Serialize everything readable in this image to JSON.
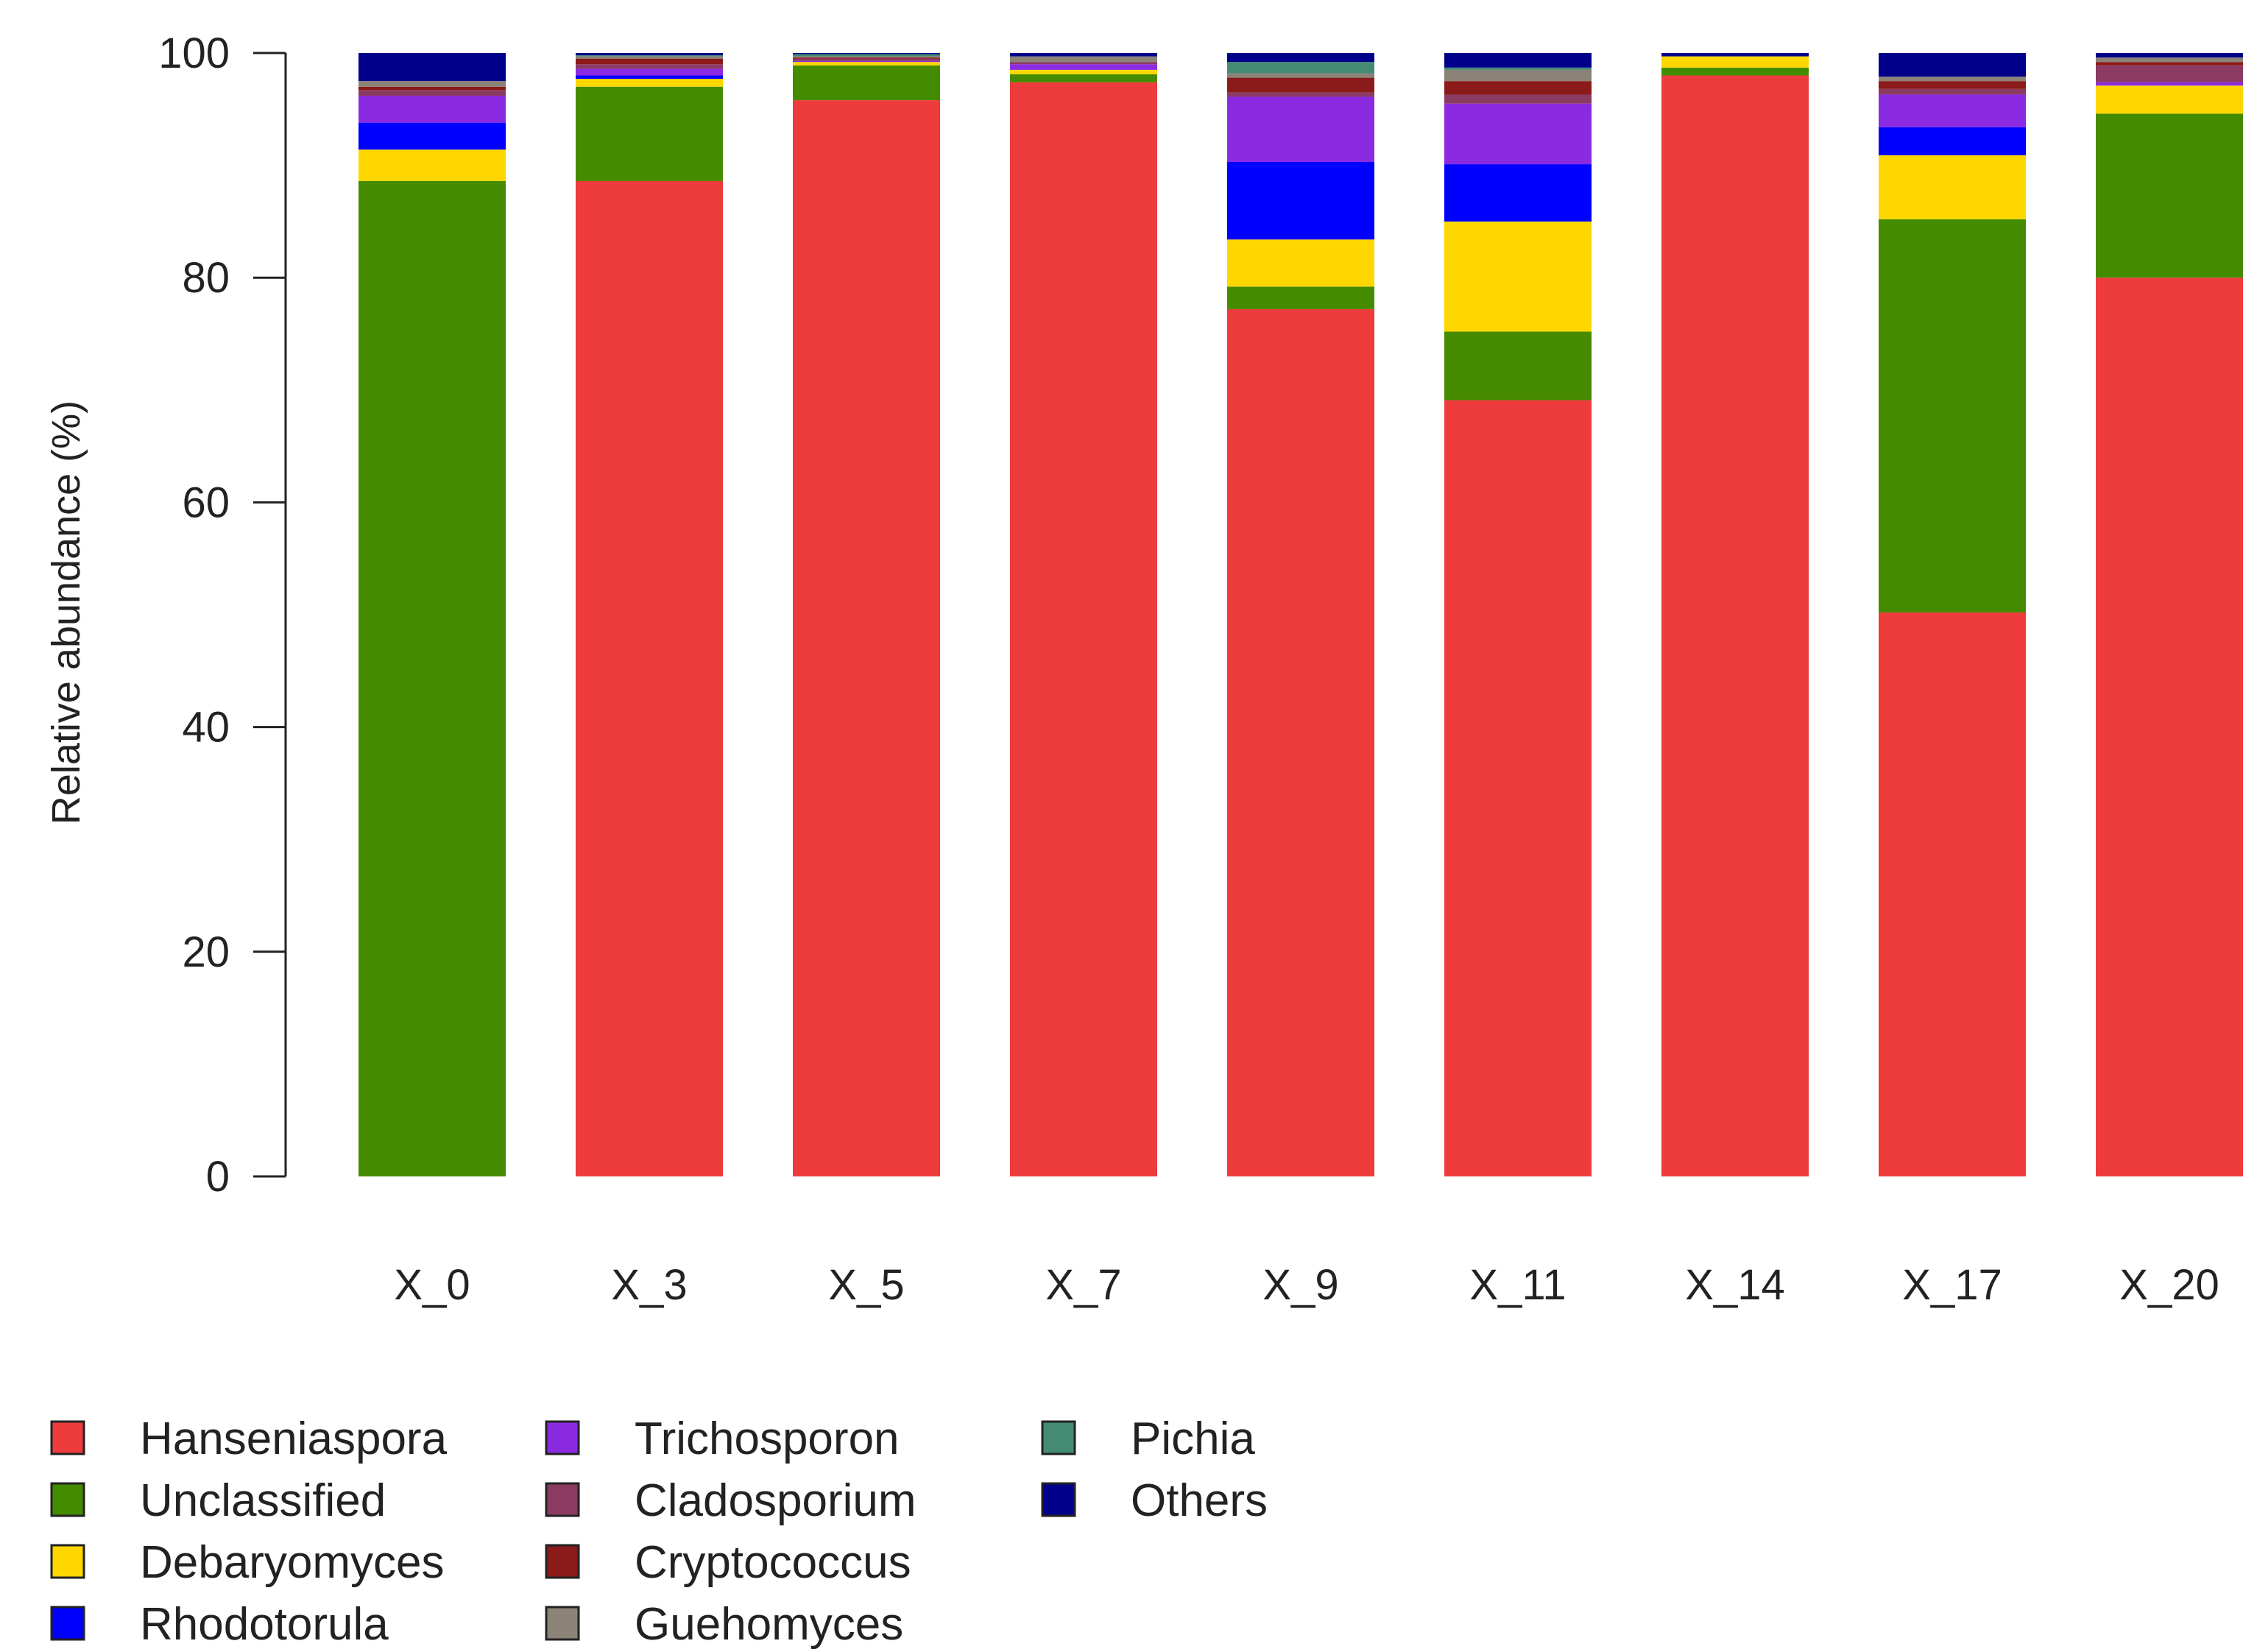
{
  "chart_data": {
    "type": "bar",
    "stacked": true,
    "title": "",
    "xlabel": "",
    "ylabel": "Relative abundance (%)",
    "ylim": [
      0,
      100
    ],
    "yticks": [
      "0",
      "20",
      "40",
      "60",
      "80",
      "100"
    ],
    "categories": [
      "X_0",
      "X_3",
      "X_5",
      "X_7",
      "X_9",
      "X_11",
      "X_14",
      "X_17",
      "X_20"
    ],
    "series": [
      {
        "name": "Hanseniaspora",
        "color": "#EE3B3B",
        "values": [
          0,
          88.6,
          95.8,
          97.4,
          77.2,
          69.1,
          98.0,
          50.2,
          80.0
        ]
      },
      {
        "name": "Unclassified",
        "color": "#458B00",
        "values": [
          88.6,
          8.4,
          3.1,
          0.7,
          2.0,
          6.1,
          0.7,
          35.0,
          14.6
        ]
      },
      {
        "name": "Debaryomyces",
        "color": "#FFD700",
        "values": [
          2.8,
          0.7,
          0.3,
          0.4,
          4.2,
          9.8,
          1.0,
          5.7,
          2.5
        ]
      },
      {
        "name": "Rhodotorula",
        "color": "#0000FF",
        "values": [
          2.4,
          0.3,
          0,
          0,
          6.9,
          5.1,
          0,
          2.5,
          0
        ]
      },
      {
        "name": "Trichosporon",
        "color": "#8A2BE2",
        "values": [
          2.4,
          0.6,
          0.1,
          0.5,
          5.8,
          5.4,
          0,
          2.9,
          0.3
        ]
      },
      {
        "name": "Cladosporium",
        "color": "#8B3A62",
        "values": [
          0.5,
          0.4,
          0.2,
          0.2,
          0.4,
          0.8,
          0,
          0.5,
          1.5
        ]
      },
      {
        "name": "Cryptococcus",
        "color": "#8B1A1A",
        "values": [
          0.3,
          0.5,
          0.1,
          0,
          1.3,
          1.2,
          0,
          0.7,
          0.3
        ]
      },
      {
        "name": "Guehomyces",
        "color": "#8B8378",
        "values": [
          0.5,
          0.2,
          0.1,
          0.5,
          0.4,
          1.0,
          0,
          0.4,
          0.4
        ]
      },
      {
        "name": "Pichia",
        "color": "#458B74",
        "values": [
          0,
          0.1,
          0.2,
          0,
          1.0,
          0.2,
          0,
          0,
          0
        ]
      },
      {
        "name": "Others",
        "color": "#00008B",
        "values": [
          2.5,
          0.2,
          0.1,
          0.3,
          0.8,
          1.3,
          0.3,
          2.1,
          0.4
        ]
      }
    ],
    "legend": {
      "position": "bottom-left",
      "columns": 3
    }
  }
}
